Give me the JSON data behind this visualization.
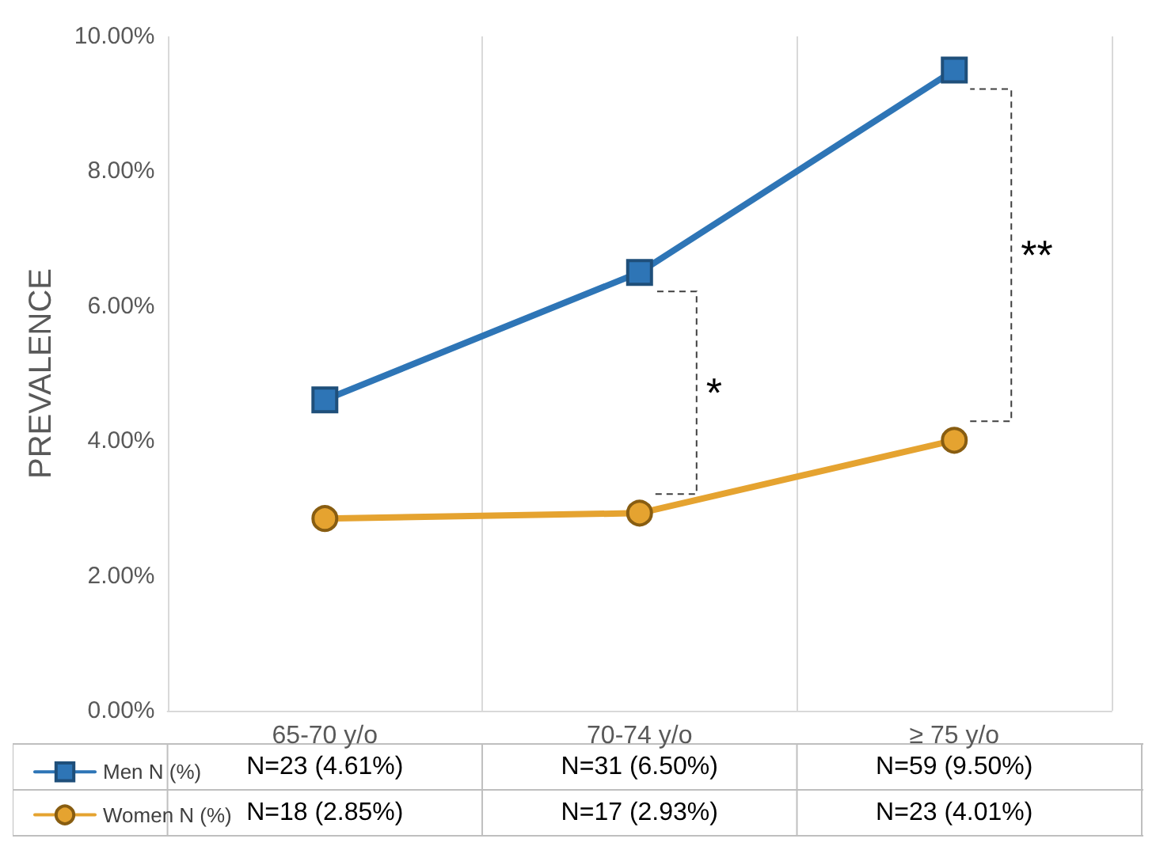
{
  "chart_data": {
    "type": "line",
    "ylabel": "PREVALENCE",
    "categories": [
      "65-70 y/o",
      "70-74 y/o",
      "≥ 75 y/o"
    ],
    "series": [
      {
        "name": "Men N (%)",
        "color": "#2e75b6",
        "marker": "square",
        "values": [
          4.61,
          6.5,
          9.5
        ],
        "value_labels": [
          "N=23 (4.61%)",
          "N=31 (6.50%)",
          "N=59 (9.50%)"
        ]
      },
      {
        "name": "Women N (%)",
        "color": "#e5a330",
        "marker": "circle",
        "values": [
          2.85,
          2.93,
          4.01
        ],
        "value_labels": [
          "N=18 (2.85%)",
          "N=17 (2.93%)",
          "N=23 (4.01%)"
        ]
      }
    ],
    "ylim": [
      0,
      10
    ],
    "yticks": [
      {
        "value": 0,
        "label": "0.00%"
      },
      {
        "value": 2,
        "label": "2.00%"
      },
      {
        "value": 4,
        "label": "4.00%"
      },
      {
        "value": 6,
        "label": "6.00%"
      },
      {
        "value": 8,
        "label": "8.00%"
      },
      {
        "value": 10,
        "label": "10.00%"
      }
    ],
    "grid": "x",
    "legend": "bottom",
    "line_style": "solid",
    "annotations": [
      "*",
      "**"
    ]
  }
}
